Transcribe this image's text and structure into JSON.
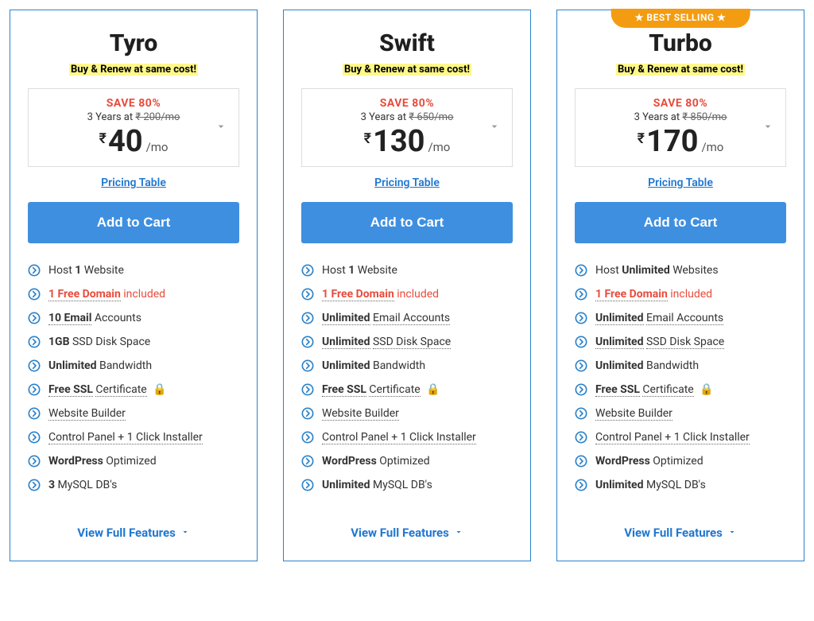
{
  "colors": {
    "card_border": "#2c82c9",
    "cta_bg": "#3f8fe0",
    "cta_text": "#ffffff",
    "save_text": "#e74c3c",
    "link": "#1f77d0",
    "highlight_bg": "#fef88a",
    "badge_bg": "#f39c12",
    "lock_green": "#2ecc71",
    "bullet_blue": "#2c82c9"
  },
  "shared": {
    "subtitle": "Buy & Renew at same cost!",
    "save": "SAVE 80%",
    "pricing_link": "Pricing Table",
    "cta": "Add to Cart",
    "view_full": "View Full Features",
    "per": "/mo",
    "currency": "₹"
  },
  "plans": [
    {
      "name": "Tyro",
      "badge": null,
      "term": "3 Years at",
      "original": "₹ 200/mo",
      "price": "40",
      "features": [
        {
          "html": "Host <span class='b'>1</span> Website",
          "dotted": false,
          "highlight": false,
          "lock": false
        },
        {
          "html": "<span class='free-domain'><span class='dotted'>1 Free Domain</span> <span class='incl'>included</span></span>",
          "dotted": false,
          "highlight": true,
          "lock": false
        },
        {
          "html": "<span class='b dotted'>10 Email</span> Accounts",
          "dotted": false,
          "highlight": false,
          "lock": false
        },
        {
          "html": "<span class='b'>1GB</span> SSD Disk Space",
          "dotted": false,
          "highlight": false,
          "lock": false
        },
        {
          "html": "<span class='b'>Unlimited</span> Bandwidth",
          "dotted": false,
          "highlight": false,
          "lock": false
        },
        {
          "html": "<span class='b dotted'>Free SSL</span> <span class='dotted'>Certificate</span>",
          "dotted": false,
          "highlight": false,
          "lock": true
        },
        {
          "html": "<span class='dotted'>Website Builder</span>",
          "dotted": false,
          "highlight": false,
          "lock": false
        },
        {
          "html": "<span class='dotted'>Control Panel + 1 Click Installer</span>",
          "dotted": false,
          "highlight": false,
          "lock": false
        },
        {
          "html": "<span class='b'>WordPress</span> Optimized",
          "dotted": false,
          "highlight": false,
          "lock": false
        },
        {
          "html": "<span class='b'>3</span> MySQL DB's",
          "dotted": false,
          "highlight": false,
          "lock": false
        }
      ]
    },
    {
      "name": "Swift",
      "badge": null,
      "term": "3 Years at",
      "original": "₹ 650/mo",
      "price": "130",
      "features": [
        {
          "html": "Host <span class='b'>1</span> Website",
          "lock": false
        },
        {
          "html": "<span class='free-domain'><span class='dotted'>1 Free Domain</span> <span class='incl'>included</span></span>",
          "lock": false
        },
        {
          "html": "<span class='b dotted'>Unlimited</span> <span class='dotted'>Email Accounts</span>",
          "lock": false
        },
        {
          "html": "<span class='b dotted'>Unlimited</span> <span class='dotted'>SSD Disk Space</span>",
          "lock": false
        },
        {
          "html": "<span class='b'>Unlimited</span> Bandwidth",
          "lock": false
        },
        {
          "html": "<span class='b dotted'>Free SSL</span> <span class='dotted'>Certificate</span>",
          "lock": true
        },
        {
          "html": "<span class='dotted'>Website Builder</span>",
          "lock": false
        },
        {
          "html": "<span class='dotted'>Control Panel + 1 Click Installer</span>",
          "lock": false
        },
        {
          "html": "<span class='b'>WordPress</span> Optimized",
          "lock": false
        },
        {
          "html": "<span class='b'>Unlimited</span> MySQL DB's",
          "lock": false
        }
      ]
    },
    {
      "name": "Turbo",
      "badge": "★  BEST SELLING  ★",
      "term": "3 Years at",
      "original": "₹ 850/mo",
      "price": "170",
      "features": [
        {
          "html": "Host <span class='b'>Unlimited</span> Websites",
          "lock": false
        },
        {
          "html": "<span class='free-domain'><span class='dotted'>1 Free Domain</span> <span class='incl'>included</span></span>",
          "lock": false
        },
        {
          "html": "<span class='b dotted'>Unlimited</span> <span class='dotted'>Email Accounts</span>",
          "lock": false
        },
        {
          "html": "<span class='b dotted'>Unlimited</span> <span class='dotted'>SSD Disk Space</span>",
          "lock": false
        },
        {
          "html": "<span class='b'>Unlimited</span> Bandwidth",
          "lock": false
        },
        {
          "html": "<span class='b dotted'>Free SSL</span> <span class='dotted'>Certificate</span>",
          "lock": true
        },
        {
          "html": "<span class='dotted'>Website Builder</span>",
          "lock": false
        },
        {
          "html": "<span class='dotted'>Control Panel + 1 Click Installer</span>",
          "lock": false
        },
        {
          "html": "<span class='b'>WordPress</span> Optimized",
          "lock": false
        },
        {
          "html": "<span class='b'>Unlimited</span> MySQL DB's",
          "lock": false
        }
      ]
    }
  ]
}
